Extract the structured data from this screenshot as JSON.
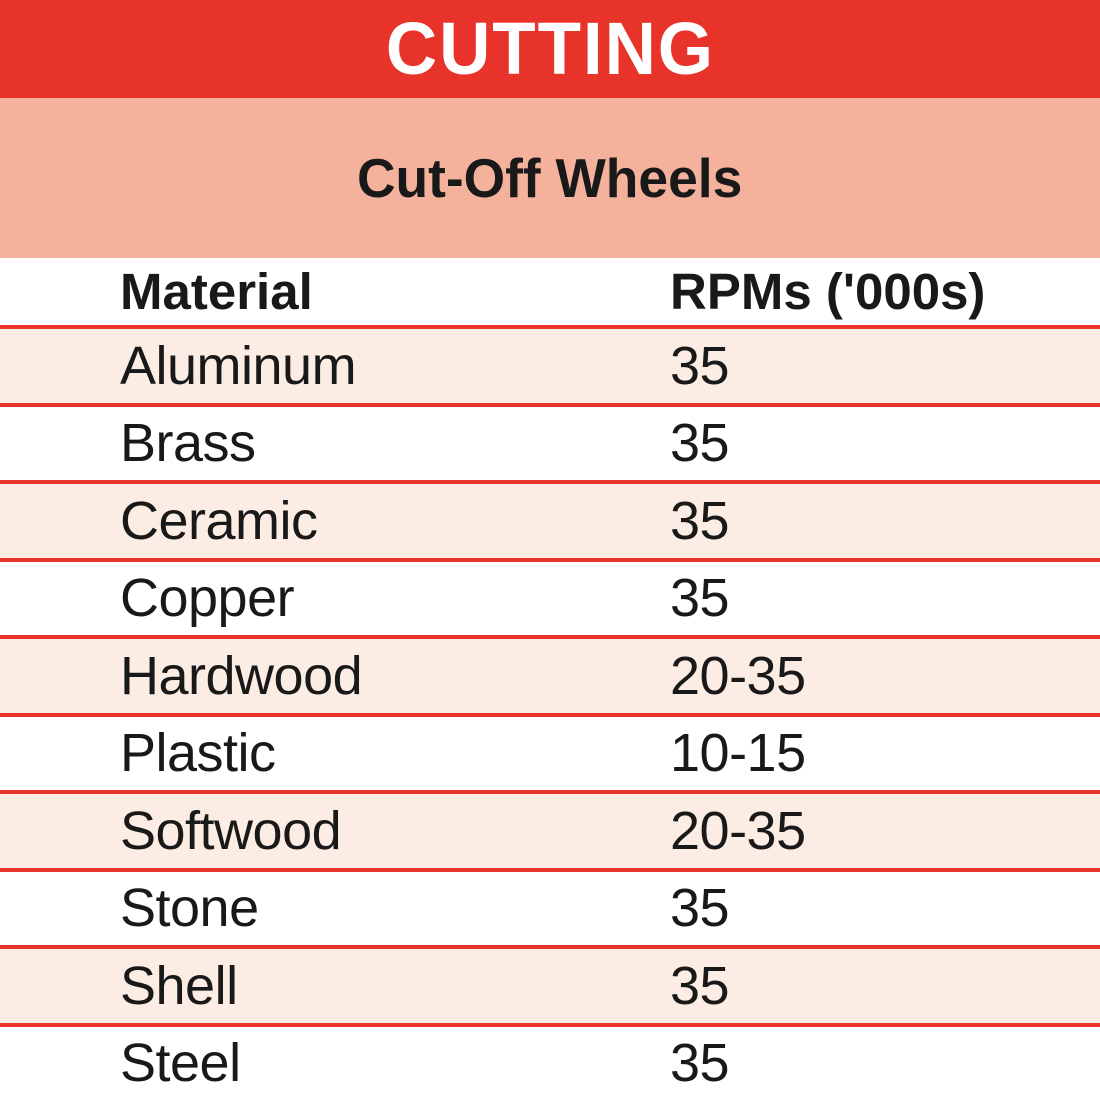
{
  "banner": {
    "title": "CUTTING"
  },
  "subtitle_band": {
    "label": "Cut-Off Wheels"
  },
  "colors": {
    "banner_red": "#E8332A",
    "salmon_band": "#F4B29D",
    "row_pink": "#FCEDE4",
    "rule_red": "#E8332A",
    "text": "#191919",
    "banner_text": "#FFFFFF"
  },
  "chart_data": {
    "type": "table",
    "title": "CUTTING",
    "subtitle": "Cut-Off Wheels",
    "columns": [
      "Material",
      "RPMs ('000s)"
    ],
    "rows": [
      [
        "Aluminum",
        "35"
      ],
      [
        "Brass",
        "35"
      ],
      [
        "Ceramic",
        "35"
      ],
      [
        "Copper",
        "35"
      ],
      [
        "Hardwood",
        "20-35"
      ],
      [
        "Plastic",
        "10-15"
      ],
      [
        "Softwood",
        "20-35"
      ],
      [
        "Stone",
        "35"
      ],
      [
        "Shell",
        "35"
      ],
      [
        "Steel",
        "35"
      ]
    ]
  }
}
